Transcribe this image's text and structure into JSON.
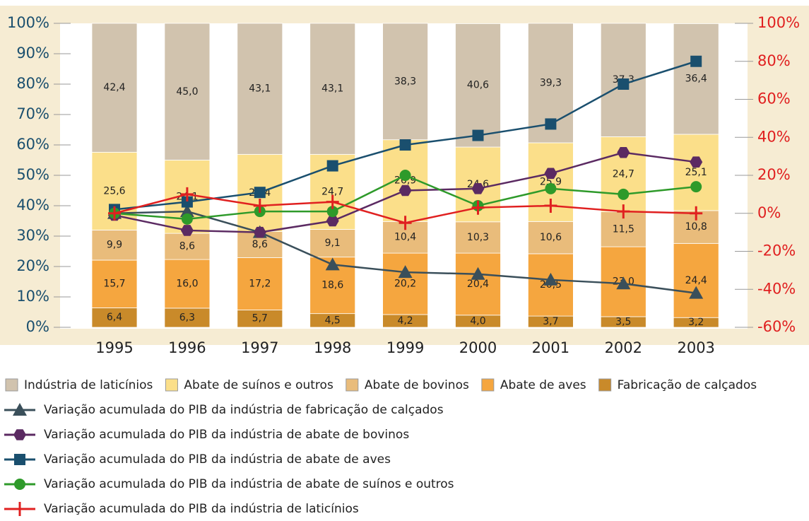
{
  "chart_data": {
    "type": "bar",
    "stacked": true,
    "categories": [
      "1995",
      "1996",
      "1997",
      "1998",
      "1999",
      "2000",
      "2001",
      "2002",
      "2003"
    ],
    "ylim": [
      0,
      100
    ],
    "yticks": [
      {
        "value": 0,
        "label": "0%"
      },
      {
        "value": 10,
        "label": "10%"
      },
      {
        "value": 20,
        "label": "20%"
      },
      {
        "value": 30,
        "label": "30%"
      },
      {
        "value": 40,
        "label": "40%"
      },
      {
        "value": 50,
        "label": "50%"
      },
      {
        "value": 60,
        "label": "60%"
      },
      {
        "value": 70,
        "label": "70%"
      },
      {
        "value": 80,
        "label": "80%"
      },
      {
        "value": 90,
        "label": "90%"
      },
      {
        "value": 100,
        "label": "100%"
      }
    ],
    "y2lim": [
      -60,
      100
    ],
    "y2ticks": [
      {
        "value": -60,
        "label": "-60%"
      },
      {
        "value": -40,
        "label": "-40%"
      },
      {
        "value": -20,
        "label": "-20%"
      },
      {
        "value": 0,
        "label": "0%"
      },
      {
        "value": 20,
        "label": "20%"
      },
      {
        "value": 40,
        "label": "40%"
      },
      {
        "value": 60,
        "label": "60%"
      },
      {
        "value": 80,
        "label": "80%"
      },
      {
        "value": 100,
        "label": "100%"
      }
    ],
    "series": [
      {
        "name": "Fabricação de calçados",
        "type": "bar",
        "color": "#c98a2a",
        "values": [
          6.4,
          6.3,
          5.7,
          4.5,
          4.2,
          4.0,
          3.7,
          3.5,
          3.2
        ],
        "value_labels": [
          "6,4",
          "6,3",
          "5,7",
          "4,5",
          "4,2",
          "4,0",
          "3,7",
          "3,5",
          "3,2"
        ]
      },
      {
        "name": "Abate de aves",
        "type": "bar",
        "color": "#f5a63f",
        "values": [
          15.7,
          16.0,
          17.2,
          18.6,
          20.2,
          20.4,
          20.5,
          23.0,
          24.4
        ],
        "value_labels": [
          "15,7",
          "16,0",
          "17,2",
          "18,6",
          "20,2",
          "20,4",
          "20,5",
          "23,0",
          "24,4"
        ]
      },
      {
        "name": "Abate de bovinos",
        "type": "bar",
        "color": "#e9bc7b",
        "values": [
          9.9,
          8.6,
          8.6,
          9.1,
          10.4,
          10.3,
          10.6,
          11.5,
          10.8
        ],
        "value_labels": [
          "9,9",
          "8,6",
          "8,6",
          "9,1",
          "10,4",
          "10,3",
          "10,6",
          "11,5",
          "10,8"
        ]
      },
      {
        "name": "Abate de suínos e outros",
        "type": "bar",
        "color": "#fbdf8a",
        "values": [
          25.6,
          24.1,
          25.4,
          24.7,
          26.9,
          24.6,
          25.9,
          24.7,
          25.1
        ],
        "value_labels": [
          "25,6",
          "24,1",
          "25,4",
          "24,7",
          "26,9",
          "24,6",
          "25,9",
          "24,7",
          "25,1"
        ]
      },
      {
        "name": "Indústria de laticínios",
        "type": "bar",
        "color": "#d1c3ae",
        "values": [
          42.4,
          45.0,
          43.1,
          43.1,
          38.3,
          40.6,
          39.3,
          37.3,
          36.4
        ],
        "value_labels": [
          "42,4",
          "45,0",
          "43,1",
          "43,1",
          "38,3",
          "40,6",
          "39,3",
          "37,3",
          "36,4"
        ]
      },
      {
        "name": "Variação acumulada do PIB da indústria de fabricação de calçados",
        "type": "line",
        "axis": "y2",
        "marker": "triangle",
        "color": "#3a4f5a",
        "values": [
          0,
          1,
          -10,
          -27,
          -31,
          -32,
          -35,
          -37,
          -42
        ]
      },
      {
        "name": "Variação acumulada do PIB da indústria de abate de bovinos",
        "type": "line",
        "axis": "y2",
        "marker": "hexagon",
        "color": "#5b2a62",
        "values": [
          -1,
          -9,
          -10,
          -4,
          12,
          13,
          21,
          32,
          27
        ]
      },
      {
        "name": "Variação acumulada do PIB da indústria de abate de aves",
        "type": "line",
        "axis": "y2",
        "marker": "square",
        "color": "#1a4f6e",
        "values": [
          2,
          6,
          11,
          25,
          36,
          41,
          47,
          68,
          80
        ]
      },
      {
        "name": "Variação acumulada do PIB da indústria de abate de suínos e outros",
        "type": "line",
        "axis": "y2",
        "marker": "circle",
        "color": "#2e9a2a",
        "values": [
          0,
          -3,
          1,
          1,
          20,
          4,
          13,
          10,
          14
        ]
      },
      {
        "name": "Variação acumulada do PIB da indústria de laticínios",
        "type": "line",
        "axis": "y2",
        "marker": "cross",
        "color": "#e02020",
        "values": [
          0,
          10,
          4,
          6,
          -5,
          3,
          4,
          1,
          0
        ]
      }
    ]
  }
}
